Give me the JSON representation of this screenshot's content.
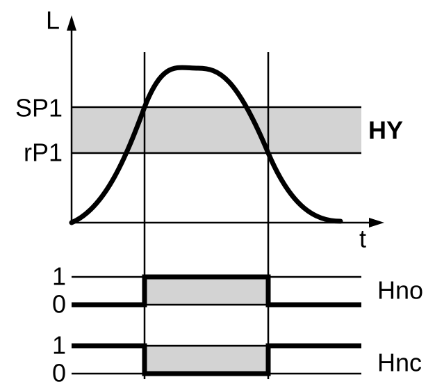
{
  "axes": {
    "y_label": "L",
    "x_label": "t"
  },
  "thresholds": {
    "upper": "SP1",
    "lower": "rP1",
    "band": "HY"
  },
  "outputs": [
    {
      "name": "Hno",
      "high": "1",
      "low": "0"
    },
    {
      "name": "Hnc",
      "high": "1",
      "low": "0"
    }
  ]
}
